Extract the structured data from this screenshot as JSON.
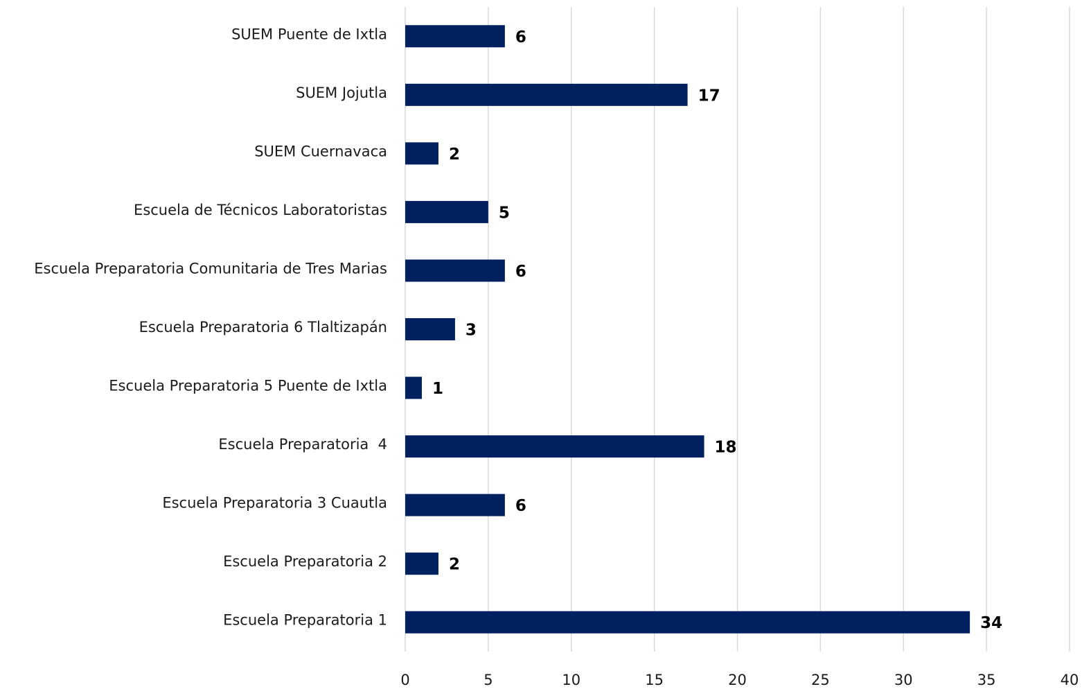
{
  "chart_data": {
    "type": "barh",
    "categories": [
      "SUEM Puente de Ixtla",
      "SUEM Jojutla",
      "SUEM Cuernavaca",
      "Escuela de Técnicos Laboratoristas",
      "Escuela Preparatoria Comunitaria de Tres Marias",
      "Escuela Preparatoria 6 Tlaltizapán",
      "Escuela Preparatoria 5 Puente de Ixtla",
      "Escuela Preparatoria  4",
      "Escuela Preparatoria 3 Cuautla",
      "Escuela Preparatoria 2",
      "Escuela Preparatoria 1"
    ],
    "values": [
      6,
      17,
      2,
      5,
      6,
      3,
      1,
      18,
      6,
      2,
      34
    ],
    "color": "#002060",
    "xlim": [
      0,
      40
    ],
    "xticks": [
      0,
      5,
      10,
      15,
      20,
      25,
      30,
      35,
      40
    ],
    "grid": true
  }
}
